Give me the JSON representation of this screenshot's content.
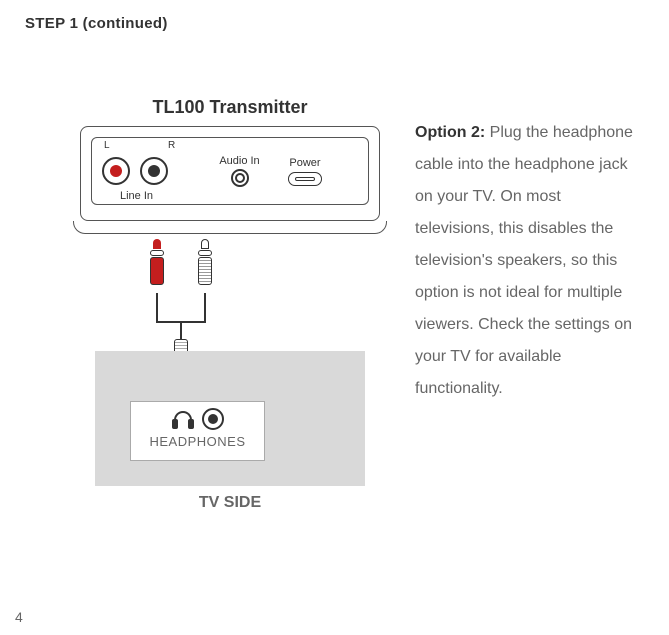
{
  "header": {
    "step": "STEP 1  (continued)"
  },
  "transmitter": {
    "title": "TL100 Transmitter",
    "labels": {
      "l": "L",
      "r": "R",
      "linein": "Line In",
      "audioin": "Audio In",
      "power": "Power"
    }
  },
  "tv": {
    "side_label": "TV SIDE",
    "headphones": "HEADPHONES"
  },
  "instructions": {
    "option_label": "Option 2:",
    "body": "  Plug the headphone cable into the headphone jack on your TV. On most televisions, this disables the television's speakers, so this option is not ideal for multiple viewers. Check the settings on your TV for available functionality."
  },
  "page": {
    "number": "4"
  },
  "colors": {
    "red": "#c41e1e",
    "gray_box": "#d9d9d9",
    "text": "#333333",
    "muted": "#666666"
  }
}
